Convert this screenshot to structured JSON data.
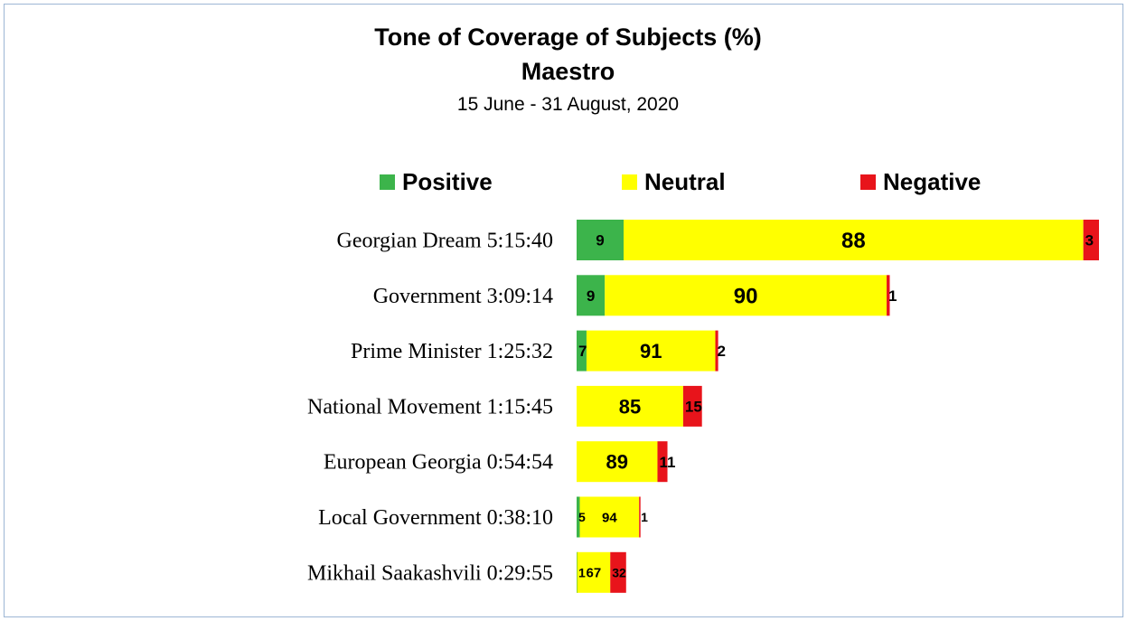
{
  "colors": {
    "positive": "#3cb44b",
    "neutral": "#ffff00",
    "negative": "#e8141b",
    "border": "#9db6d4"
  },
  "chart_data": {
    "type": "bar",
    "orientation": "horizontal",
    "stacked": true,
    "title": "Tone of Coverage of Subjects (%)",
    "subtitle": "Maestro",
    "date_range": "15 June - 31 August, 2020",
    "xlabel": "",
    "ylabel": "",
    "grid": false,
    "legend_position": "top",
    "categories": [
      "Georgian Dream 5:15:40",
      "Government 3:09:14",
      "Prime Minister 1:25:32",
      "National Movement 1:15:45",
      "European Georgia 0:54:54",
      "Local Government 0:38:10",
      "Mikhail Saakashvili 0:29:55"
    ],
    "durations_seconds": [
      18940,
      11354,
      5132,
      4545,
      3294,
      2290,
      1795
    ],
    "series": [
      {
        "name": "Positive",
        "color": "#3cb44b",
        "values": [
          9,
          9,
          7,
          null,
          null,
          5,
          1
        ]
      },
      {
        "name": "Neutral",
        "color": "#ffff00",
        "values": [
          88,
          90,
          91,
          85,
          89,
          94,
          67
        ]
      },
      {
        "name": "Negative",
        "color": "#e8141b",
        "values": [
          3,
          1,
          2,
          15,
          11,
          1,
          32
        ]
      }
    ]
  }
}
